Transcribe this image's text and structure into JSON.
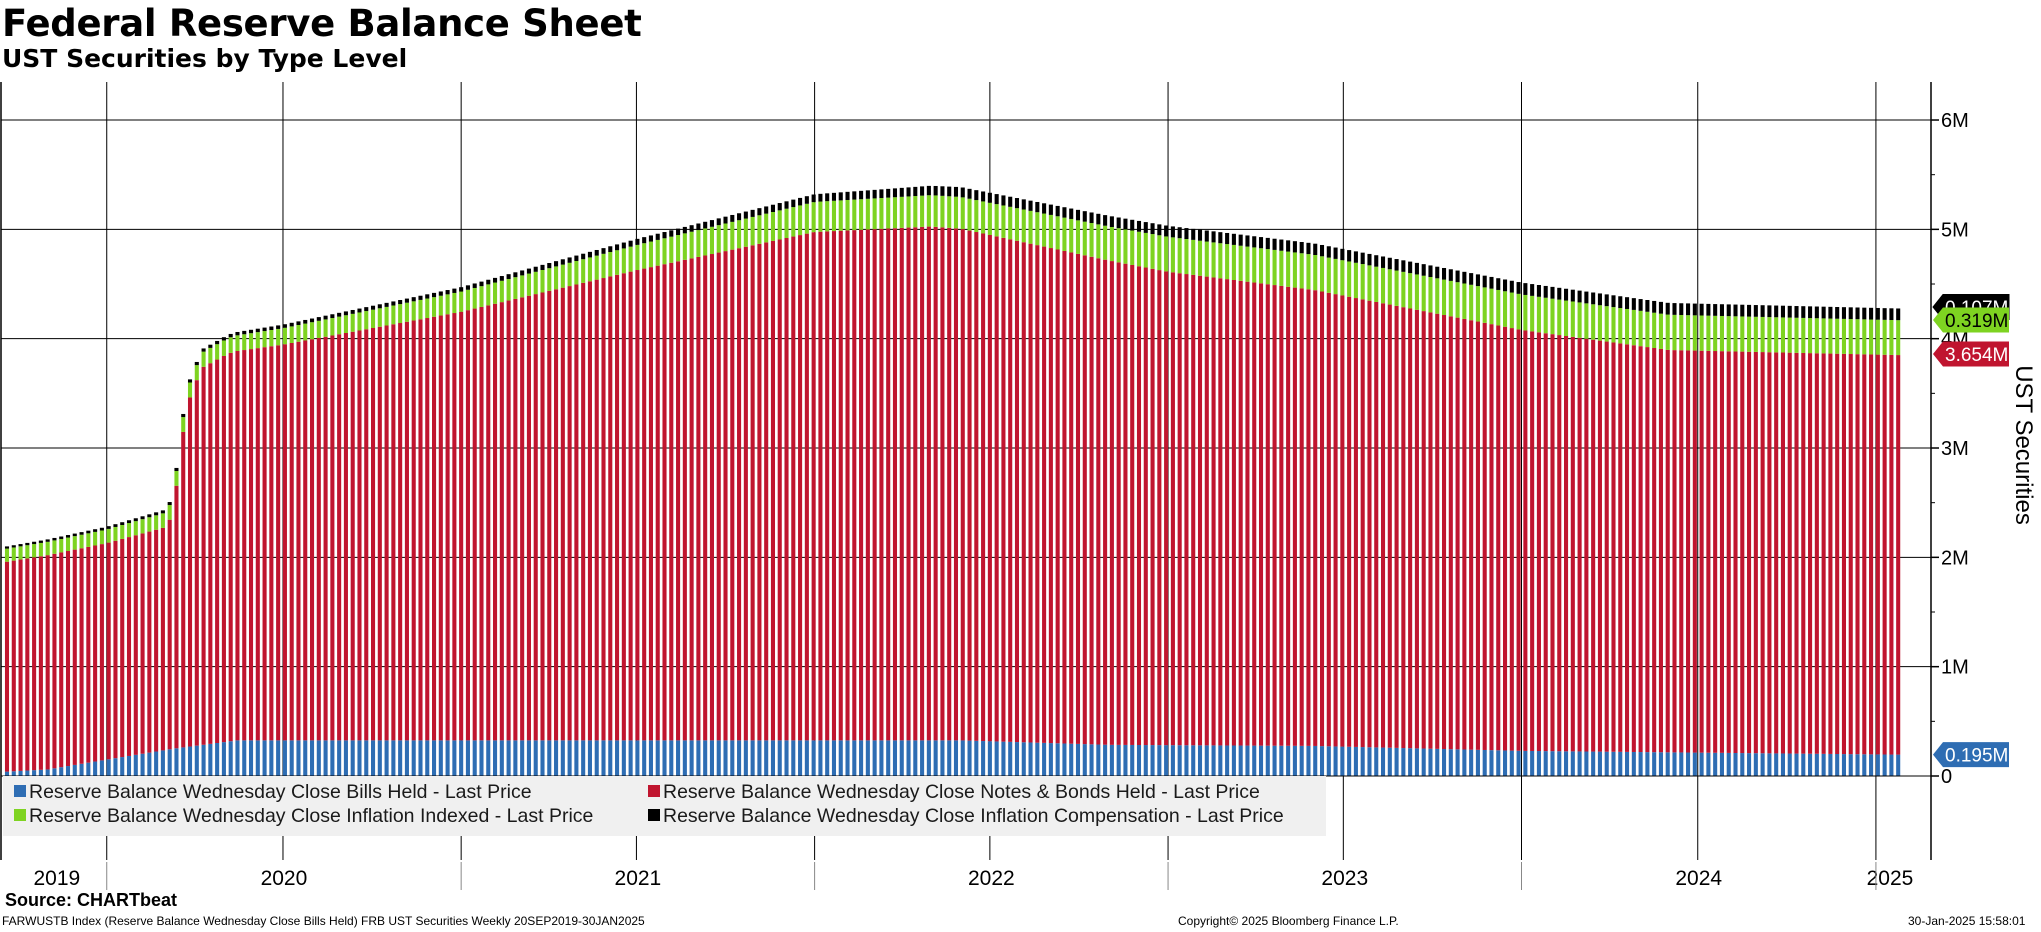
{
  "chart_data": {
    "type": "bar",
    "stacked": true,
    "title": "Federal Reserve Balance Sheet",
    "subtitle": "UST Securities by Type Level",
    "ylabel": "UST Securities",
    "xlabel": "",
    "ylim": [
      -600000,
      6300000
    ],
    "y_ticks": [
      {
        "value": 0,
        "label": "0"
      },
      {
        "value": 1000000,
        "label": "1M"
      },
      {
        "value": 2000000,
        "label": "2M"
      },
      {
        "value": 3000000,
        "label": "3M"
      },
      {
        "value": 4000000,
        "label": "4M"
      },
      {
        "value": 5000000,
        "label": "5M"
      },
      {
        "value": 6000000,
        "label": "6M"
      }
    ],
    "x_range": [
      "2019-09-20",
      "2025-01-30"
    ],
    "x_year_labels": [
      "2019",
      "2020",
      "2021",
      "2022",
      "2023",
      "2024",
      "2025"
    ],
    "frequency": "Weekly",
    "grid": true,
    "legend_position": "bottom-left",
    "series": [
      {
        "name": "Reserve Balance Wednesday Close Bills Held - Last Price",
        "color": "#2e6db3",
        "last_value_label": "0.195M",
        "anchors": [
          [
            "2019-09-20",
            40000
          ],
          [
            "2019-11-01",
            60000
          ],
          [
            "2020-01-01",
            150000
          ],
          [
            "2020-03-10",
            250000
          ],
          [
            "2020-05-15",
            326000
          ],
          [
            "2022-06-01",
            326000
          ],
          [
            "2022-11-01",
            285000
          ],
          [
            "2023-06-01",
            275000
          ],
          [
            "2024-01-01",
            230000
          ],
          [
            "2025-01-30",
            195000
          ]
        ]
      },
      {
        "name": "Reserve Balance Wednesday Close Notes & Bonds Held - Last Price",
        "color": "#c0152f",
        "last_value_label": "3.654M",
        "anchors": [
          [
            "2019-09-20",
            1920000
          ],
          [
            "2019-11-01",
            1960000
          ],
          [
            "2020-01-01",
            1980000
          ],
          [
            "2020-03-04",
            2040000
          ],
          [
            "2020-03-11",
            2250000
          ],
          [
            "2020-03-18",
            2780000
          ],
          [
            "2020-03-25",
            3150000
          ],
          [
            "2020-04-08",
            3450000
          ],
          [
            "2020-05-06",
            3550000
          ],
          [
            "2020-07-01",
            3620000
          ],
          [
            "2021-01-01",
            3920000
          ],
          [
            "2021-07-01",
            4300000
          ],
          [
            "2022-01-01",
            4650000
          ],
          [
            "2022-05-01",
            4700000
          ],
          [
            "2022-06-01",
            4680000
          ],
          [
            "2023-01-01",
            4330000
          ],
          [
            "2023-06-01",
            4170000
          ],
          [
            "2024-01-01",
            3850000
          ],
          [
            "2024-06-01",
            3680000
          ],
          [
            "2025-01-30",
            3654000
          ]
        ]
      },
      {
        "name": "Reserve Balance Wednesday Close Inflation Indexed - Last Price",
        "color": "#7ed321",
        "last_value_label": "0.319M",
        "anchors": [
          [
            "2019-09-20",
            120000
          ],
          [
            "2020-01-01",
            125000
          ],
          [
            "2020-07-01",
            150000
          ],
          [
            "2021-01-01",
            185000
          ],
          [
            "2021-07-01",
            230000
          ],
          [
            "2022-01-01",
            275000
          ],
          [
            "2022-06-01",
            290000
          ],
          [
            "2023-01-01",
            320000
          ],
          [
            "2024-01-01",
            325000
          ],
          [
            "2025-01-30",
            319000
          ]
        ]
      },
      {
        "name": "Reserve Balance Wednesday Close Inflation Compensation - Last Price",
        "color": "#000000",
        "last_value_label": "0.107M",
        "anchors": [
          [
            "2019-09-20",
            20000
          ],
          [
            "2020-01-01",
            25000
          ],
          [
            "2021-01-01",
            40000
          ],
          [
            "2022-01-01",
            70000
          ],
          [
            "2022-06-01",
            90000
          ],
          [
            "2023-01-01",
            100000
          ],
          [
            "2024-01-01",
            108000
          ],
          [
            "2025-01-30",
            107000
          ]
        ]
      }
    ]
  },
  "source": "Source: CHARTbeat",
  "footer": {
    "left": "FARWUSTB Index (Reserve Balance Wednesday Close Bills Held) FRB UST Securities  Weekly 20SEP2019-30JAN2025",
    "center": "Copyright© 2025 Bloomberg Finance L.P.",
    "right": "30-Jan-2025 15:58:01"
  }
}
